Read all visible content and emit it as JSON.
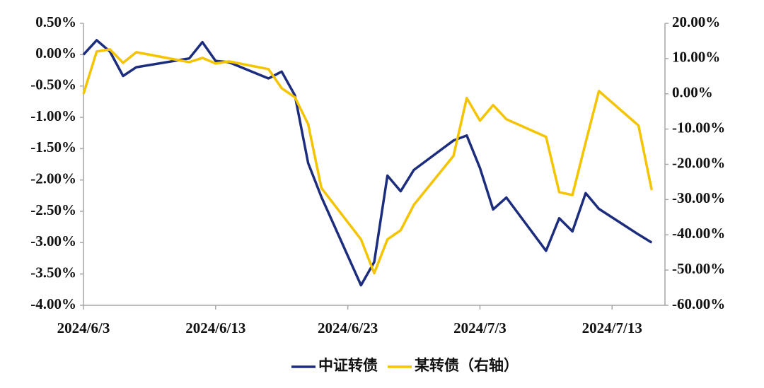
{
  "chart_data": {
    "type": "line",
    "x": [
      "2024/6/3",
      "2024/6/4",
      "2024/6/5",
      "2024/6/6",
      "2024/6/7",
      "2024/6/11",
      "2024/6/12",
      "2024/6/13",
      "2024/6/14",
      "2024/6/17",
      "2024/6/18",
      "2024/6/19",
      "2024/6/20",
      "2024/6/21",
      "2024/6/24",
      "2024/6/25",
      "2024/6/26",
      "2024/6/27",
      "2024/6/28",
      "2024/7/1",
      "2024/7/2",
      "2024/7/3",
      "2024/7/4",
      "2024/7/5",
      "2024/7/8",
      "2024/7/9",
      "2024/7/10",
      "2024/7/11",
      "2024/7/12",
      "2024/7/15",
      "2024/7/16"
    ],
    "series": [
      {
        "name": "中证转债",
        "color": "#1c2d7e",
        "axis": "y",
        "values": [
          0.0,
          0.23,
          0.05,
          -0.34,
          -0.2,
          -0.06,
          0.2,
          -0.1,
          -0.12,
          -0.38,
          -0.27,
          -0.65,
          -1.73,
          -2.27,
          -3.68,
          -3.31,
          -1.93,
          -2.18,
          -1.84,
          -1.37,
          -1.29,
          -1.81,
          -2.47,
          -2.28,
          -3.13,
          -2.61,
          -2.82,
          -2.21,
          -2.46,
          -2.87,
          -3.0
        ]
      },
      {
        "name": "某转债（右轴）",
        "color": "#f5c400",
        "axis": "y2",
        "values": [
          0.0,
          12.0,
          12.6,
          8.8,
          11.8,
          9.0,
          10.2,
          8.6,
          9.2,
          7.0,
          1.6,
          -1.0,
          -8.6,
          -26.7,
          -41.3,
          -50.9,
          -41.3,
          -38.7,
          -31.5,
          -17.6,
          -1.2,
          -7.6,
          -3.2,
          -7.2,
          -12.2,
          -27.9,
          -28.7,
          -13.8,
          0.8,
          -9.0,
          -27.3
        ]
      }
    ],
    "xlim": [
      "2024/6/3",
      "2024/7/17"
    ],
    "xticks": [
      "2024/6/3",
      "2024/6/13",
      "2024/6/23",
      "2024/7/3",
      "2024/7/13"
    ],
    "ylim": [
      -4.0,
      0.5
    ],
    "yticks": [
      {
        "value": 0.5,
        "label": "0.50%"
      },
      {
        "value": 0.0,
        "label": "0.00%"
      },
      {
        "value": -0.5,
        "label": "-0.50%"
      },
      {
        "value": -1.0,
        "label": "-1.00%"
      },
      {
        "value": -1.5,
        "label": "-1.50%"
      },
      {
        "value": -2.0,
        "label": "-2.00%"
      },
      {
        "value": -2.5,
        "label": "-2.50%"
      },
      {
        "value": -3.0,
        "label": "-3.00%"
      },
      {
        "value": -3.5,
        "label": "-3.50%"
      },
      {
        "value": -4.0,
        "label": "-4.00%"
      }
    ],
    "y2lim": [
      -60,
      20
    ],
    "y2ticks": [
      {
        "value": 20,
        "label": "20.00%"
      },
      {
        "value": 10,
        "label": "10.00%"
      },
      {
        "value": 0,
        "label": "0.00%"
      },
      {
        "value": -10,
        "label": "-10.00%"
      },
      {
        "value": -20,
        "label": "-20.00%"
      },
      {
        "value": -30,
        "label": "-30.00%"
      },
      {
        "value": -40,
        "label": "-40.00%"
      },
      {
        "value": -50,
        "label": "-50.00%"
      },
      {
        "value": -60,
        "label": "-60.00%"
      }
    ],
    "legend": "bottom"
  }
}
